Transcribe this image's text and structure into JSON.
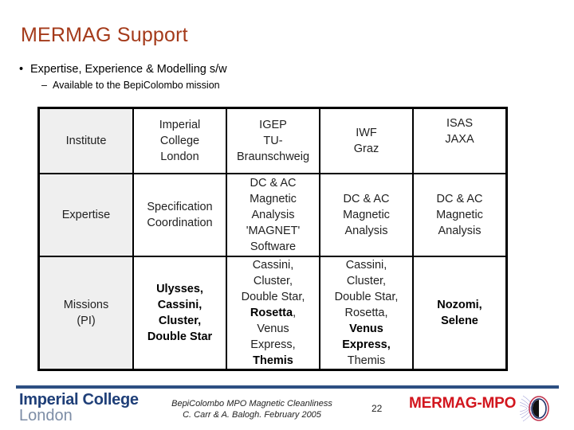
{
  "slide": {
    "title": "MERMAG Support",
    "bullets": [
      {
        "level": 1,
        "marker": "•",
        "text": "Expertise, Experience & Modelling s/w"
      },
      {
        "level": 2,
        "marker": "–",
        "text": "Available to the BepiColombo mission"
      }
    ]
  },
  "table": {
    "row_headers": [
      "Institute",
      "Expertise",
      "Missions",
      "(PI)"
    ],
    "institutes": [
      {
        "lines": [
          "Imperial",
          "College",
          "London"
        ]
      },
      {
        "lines": [
          "IGEP",
          "TU-",
          "Braunschweig"
        ]
      },
      {
        "lines": [
          "IWF",
          "Graz"
        ]
      },
      {
        "lines": [
          "ISAS",
          "JAXA"
        ]
      }
    ],
    "expertise": [
      {
        "lines": [
          "Specification",
          "Coordination"
        ]
      },
      {
        "lines": [
          "DC & AC",
          "Magnetic",
          "Analysis",
          "'MAGNET'",
          "Software"
        ]
      },
      {
        "lines": [
          "DC & AC",
          "Magnetic",
          "Analysis"
        ]
      },
      {
        "lines": [
          "DC & AC",
          "Magnetic",
          "Analysis"
        ]
      }
    ],
    "missions": [
      {
        "lines": [
          {
            "text": "Ulysses,",
            "bold": true
          },
          {
            "text": "Cassini,",
            "bold": true
          },
          {
            "text": "Cluster,",
            "bold": true
          },
          {
            "text": "Double Star",
            "bold": true
          }
        ]
      },
      {
        "lines": [
          {
            "text": "Cassini,",
            "bold": false
          },
          {
            "text": "Cluster,",
            "bold": false
          },
          {
            "text": "Double Star,",
            "bold": false
          },
          {
            "text": "Rosetta",
            "bold": true,
            "suffix": ","
          },
          {
            "text": "Venus",
            "bold": false
          },
          {
            "text": "Express,",
            "bold": false
          },
          {
            "text": "Themis",
            "bold": true
          }
        ]
      },
      {
        "lines": [
          {
            "text": "Cassini,",
            "bold": false
          },
          {
            "text": "Cluster,",
            "bold": false
          },
          {
            "text": "Double Star,",
            "bold": false
          },
          {
            "text": "Rosetta,",
            "bold": false
          },
          {
            "text": "Venus",
            "bold": true
          },
          {
            "text": "Express,",
            "bold": true
          },
          {
            "text": "Themis",
            "bold": false
          }
        ]
      },
      {
        "lines": [
          {
            "text": "Nozomi,",
            "bold": true
          },
          {
            "text": "Selene",
            "bold": true
          }
        ]
      }
    ]
  },
  "footer": {
    "logo_left": {
      "line1": "Imperial College",
      "line2": "London"
    },
    "note_line1": "BepiColombo MPO Magnetic Cleanliness",
    "note_line2": "C. Carr & A. Balogh. February 2005",
    "page_number": "22",
    "logo_right": "MERMAG-MPO",
    "emblem_icon": "magnetometer-emblem-icon"
  },
  "colors": {
    "title": "#a43a1a",
    "footer_bar": "#2d4f82",
    "imperial_blue": "#1f3f78",
    "imperial_grey": "#7d8da6",
    "mermag_red": "#d2161e",
    "header_cell_bg": "#efefef"
  }
}
